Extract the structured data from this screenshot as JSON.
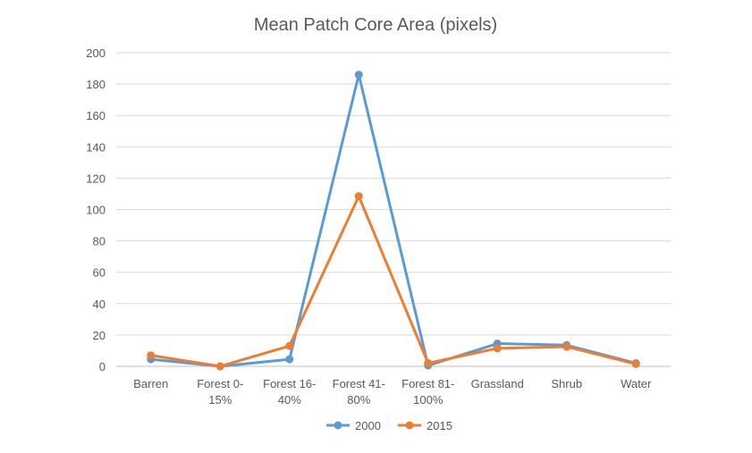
{
  "chart_data": {
    "type": "line",
    "title": "Mean Patch Core Area (pixels)",
    "xlabel": "",
    "ylabel": "",
    "categories": [
      [
        "Barren"
      ],
      [
        "Forest 0-",
        "15%"
      ],
      [
        "Forest 16-",
        "40%"
      ],
      [
        "Forest 41-",
        "80%"
      ],
      [
        "Forest 81-",
        "100%"
      ],
      [
        "Grassland"
      ],
      [
        "Shrub"
      ],
      [
        "Water"
      ]
    ],
    "ylim": [
      0,
      200
    ],
    "yticks": [
      "0",
      "20",
      "40",
      "60",
      "80",
      "100",
      "120",
      "140",
      "160",
      "180",
      "200"
    ],
    "grid": true,
    "legend_position": "bottom",
    "series": [
      {
        "name": "2000",
        "color": "#5B9BD5",
        "values": [
          4.5,
          0,
          4.5,
          186,
          0.5,
          14.5,
          13.5,
          2
        ]
      },
      {
        "name": "2015",
        "color": "#ED7D31",
        "values": [
          7,
          0,
          13,
          108.5,
          2,
          11.5,
          12.5,
          1.5
        ]
      }
    ]
  }
}
